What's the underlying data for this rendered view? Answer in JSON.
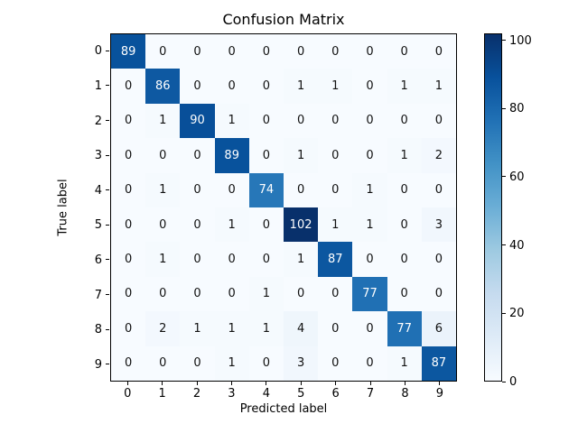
{
  "chart_data": {
    "type": "heatmap",
    "title": "Confusion Matrix",
    "xlabel": "Predicted label",
    "ylabel": "True label",
    "x_tick_labels": [
      "0",
      "1",
      "2",
      "3",
      "4",
      "5",
      "6",
      "7",
      "8",
      "9"
    ],
    "y_tick_labels": [
      "0",
      "1",
      "2",
      "3",
      "4",
      "5",
      "6",
      "7",
      "8",
      "9"
    ],
    "matrix": [
      [
        89,
        0,
        0,
        0,
        0,
        0,
        0,
        0,
        0,
        0
      ],
      [
        0,
        86,
        0,
        0,
        0,
        1,
        1,
        0,
        1,
        1
      ],
      [
        0,
        1,
        90,
        1,
        0,
        0,
        0,
        0,
        0,
        0
      ],
      [
        0,
        0,
        0,
        89,
        0,
        1,
        0,
        0,
        1,
        2
      ],
      [
        0,
        1,
        0,
        0,
        74,
        0,
        0,
        1,
        0,
        0
      ],
      [
        0,
        0,
        0,
        1,
        0,
        102,
        1,
        1,
        0,
        3
      ],
      [
        0,
        1,
        0,
        0,
        0,
        1,
        87,
        0,
        0,
        0
      ],
      [
        0,
        0,
        0,
        0,
        1,
        0,
        0,
        77,
        0,
        0
      ],
      [
        0,
        2,
        1,
        1,
        1,
        4,
        0,
        0,
        77,
        6
      ],
      [
        0,
        0,
        0,
        1,
        0,
        3,
        0,
        0,
        1,
        87
      ]
    ],
    "vmin": 0,
    "vmax": 102,
    "colormap": "Blues",
    "colorbar_ticks": [
      0,
      20,
      40,
      60,
      80,
      100
    ],
    "colorbar_position": "right",
    "grid": false
  },
  "colors": {
    "background": "#ffffff",
    "axes_border": "#000000",
    "tick_color": "#000000",
    "cell_text_dark": "#111111",
    "cell_text_light": "#ffffff",
    "blues_anchors": [
      "#f7fbff",
      "#deebf7",
      "#c6dbef",
      "#9ecae1",
      "#6baed6",
      "#4292c6",
      "#2171b5",
      "#08519c",
      "#08306b"
    ]
  }
}
